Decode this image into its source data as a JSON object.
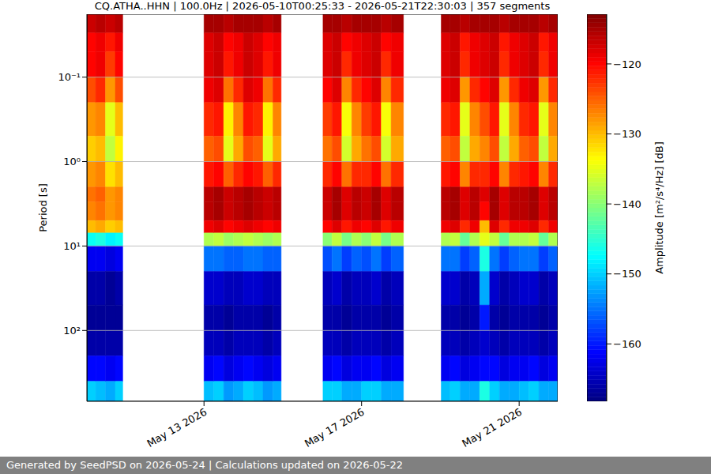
{
  "chart_data": {
    "type": "heatmap",
    "title": "CQ.ATHA..HHN | 100.0Hz | 2026-05-10T00:25:33 - 2026-05-21T22:30:03 | 357 segments",
    "y_label": "Period [s]",
    "footer": "Generated by SeedPSD on 2026-05-24 | Calculations updated on 2026-05-22",
    "log": "y",
    "grid": true,
    "xlim": [
      "2026-05-10T00:40",
      "2026-05-21T23:30"
    ],
    "xticks": [
      {
        "value": "2026-05-13T00:00",
        "label": "May 13 2026"
      },
      {
        "value": "2026-05-17T00:00",
        "label": "May 17 2026"
      },
      {
        "value": "2026-05-21T00:00",
        "label": "May 21 2026"
      }
    ],
    "ylim": [
      0.018,
      690
    ],
    "yticks": [
      {
        "value": 0.1,
        "label": "10⁻¹"
      },
      {
        "value": 1,
        "label": "10⁰"
      },
      {
        "value": 10,
        "label": "10¹"
      },
      {
        "value": 100,
        "label": "10²"
      }
    ],
    "period_edges": [
      0.018,
      0.03,
      0.05,
      0.1,
      0.2,
      0.5,
      1,
      2,
      3,
      5,
      7,
      10,
      20,
      50,
      100,
      200,
      400,
      690
    ],
    "segments": [
      {
        "x": [
          "2026-05-10T00:40",
          "2026-05-10T06:00",
          "2026-05-10T12:00",
          "2026-05-10T18:00",
          "2026-05-10T22:30"
        ],
        "values": [
          [
            -117,
            -120,
            -120,
            -124,
            -128,
            -131,
            -128,
            -126,
            -127,
            -130,
            -147,
            -162,
            -166,
            -167,
            -166,
            -161,
            -150
          ],
          [
            -116,
            -119,
            -119,
            -122,
            -127,
            -130,
            -127,
            -125,
            -126,
            -129,
            -146,
            -162,
            -166,
            -167,
            -166,
            -161,
            -151
          ],
          [
            -117,
            -121,
            -123,
            -128,
            -135,
            -137,
            -132,
            -128,
            -128,
            -131,
            -148,
            -163,
            -167,
            -167,
            -166,
            -162,
            -152
          ],
          [
            -116,
            -119,
            -120,
            -124,
            -130,
            -133,
            -130,
            -127,
            -127,
            -130,
            -147,
            -162,
            -166,
            -167,
            -166,
            -161,
            -150
          ]
        ]
      },
      {
        "x": [
          "2026-05-13T00:00",
          "2026-05-13T06:00",
          "2026-05-13T12:00",
          "2026-05-13T18:00",
          "2026-05-14T00:00",
          "2026-05-14T06:00",
          "2026-05-14T12:00",
          "2026-05-14T18:00",
          "2026-05-14T23:00"
        ],
        "values": [
          [
            -115,
            -118,
            -118,
            -119,
            -122,
            -125,
            -121,
            -116,
            -116,
            -119,
            -138,
            -155,
            -164,
            -166,
            -165,
            -162,
            -151
          ],
          [
            -115,
            -117,
            -117,
            -118,
            -121,
            -124,
            -120,
            -115,
            -115,
            -118,
            -137,
            -155,
            -164,
            -166,
            -165,
            -161,
            -150
          ],
          [
            -116,
            -120,
            -121,
            -126,
            -133,
            -135,
            -125,
            -117,
            -117,
            -120,
            -139,
            -156,
            -165,
            -167,
            -166,
            -163,
            -153
          ],
          [
            -115,
            -119,
            -119,
            -122,
            -127,
            -129,
            -122,
            -116,
            -116,
            -119,
            -138,
            -156,
            -165,
            -166,
            -165,
            -162,
            -152
          ],
          [
            -115,
            -117,
            -117,
            -118,
            -121,
            -124,
            -120,
            -115,
            -115,
            -118,
            -137,
            -155,
            -164,
            -166,
            -165,
            -161,
            -150
          ],
          [
            -115,
            -118,
            -118,
            -119,
            -122,
            -125,
            -121,
            -116,
            -116,
            -119,
            -138,
            -155,
            -164,
            -166,
            -165,
            -162,
            -151
          ],
          [
            -116,
            -120,
            -121,
            -126,
            -133,
            -135,
            -125,
            -117,
            -117,
            -120,
            -139,
            -156,
            -165,
            -167,
            -166,
            -163,
            -153
          ],
          [
            -115,
            -119,
            -119,
            -122,
            -127,
            -129,
            -122,
            -116,
            -116,
            -119,
            -138,
            -156,
            -165,
            -166,
            -165,
            -162,
            -152
          ]
        ]
      },
      {
        "x": [
          "2026-05-16T00:30",
          "2026-05-16T06:00",
          "2026-05-16T12:00",
          "2026-05-16T18:00",
          "2026-05-17T00:00",
          "2026-05-17T06:00",
          "2026-05-17T12:00",
          "2026-05-17T18:00",
          "2026-05-18T01:30"
        ],
        "values": [
          [
            -115,
            -118,
            -118,
            -120,
            -123,
            -126,
            -122,
            -117,
            -117,
            -120,
            -140,
            -157,
            -165,
            -166,
            -165,
            -162,
            -150
          ],
          [
            -115,
            -117,
            -117,
            -118,
            -121,
            -124,
            -120,
            -115,
            -115,
            -118,
            -137,
            -155,
            -164,
            -166,
            -165,
            -161,
            -150
          ],
          [
            -116,
            -120,
            -122,
            -127,
            -134,
            -136,
            -126,
            -118,
            -118,
            -121,
            -141,
            -158,
            -166,
            -167,
            -166,
            -163,
            -152
          ],
          [
            -115,
            -119,
            -119,
            -122,
            -127,
            -129,
            -122,
            -116,
            -116,
            -119,
            -138,
            -156,
            -165,
            -166,
            -165,
            -162,
            -152
          ],
          [
            -115,
            -118,
            -118,
            -120,
            -123,
            -126,
            -122,
            -117,
            -117,
            -120,
            -140,
            -157,
            -165,
            -166,
            -165,
            -162,
            -150
          ],
          [
            -115,
            -117,
            -117,
            -118,
            -121,
            -124,
            -120,
            -115,
            -115,
            -118,
            -137,
            -155,
            -164,
            -166,
            -165,
            -161,
            -150
          ],
          [
            -116,
            -120,
            -122,
            -127,
            -134,
            -136,
            -126,
            -118,
            -118,
            -121,
            -141,
            -158,
            -166,
            -167,
            -166,
            -163,
            -152
          ],
          [
            -115,
            -119,
            -119,
            -122,
            -127,
            -129,
            -122,
            -116,
            -116,
            -119,
            -138,
            -156,
            -165,
            -166,
            -165,
            -162,
            -152
          ]
        ]
      },
      {
        "x": [
          "2026-05-19T00:30",
          "2026-05-19T06:00",
          "2026-05-19T12:00",
          "2026-05-19T18:00",
          "2026-05-20T00:00",
          "2026-05-20T06:00",
          "2026-05-20T12:00",
          "2026-05-20T18:00",
          "2026-05-21T00:00",
          "2026-05-21T06:00",
          "2026-05-21T12:00",
          "2026-05-21T18:00",
          "2026-05-21T23:30"
        ],
        "values": [
          [
            -115,
            -118,
            -118,
            -119,
            -122,
            -125,
            -121,
            -116,
            -116,
            -119,
            -138,
            -155,
            -164,
            -166,
            -165,
            -162,
            -151
          ],
          [
            -115,
            -117,
            -117,
            -118,
            -121,
            -124,
            -120,
            -115,
            -115,
            -118,
            -137,
            -155,
            -164,
            -166,
            -165,
            -161,
            -150
          ],
          [
            -116,
            -121,
            -122,
            -128,
            -135,
            -137,
            -127,
            -118,
            -118,
            -122,
            -142,
            -158,
            -166,
            -167,
            -166,
            -163,
            -152
          ],
          [
            -115,
            -119,
            -119,
            -122,
            -127,
            -129,
            -122,
            -116,
            -116,
            -119,
            -138,
            -156,
            -165,
            -166,
            -165,
            -162,
            -152
          ],
          [
            -115,
            -118,
            -118,
            -120,
            -124,
            -127,
            -122,
            -118,
            -120,
            -130,
            -135,
            -146,
            -152,
            -160,
            -164,
            -161,
            -146
          ],
          [
            -115,
            -117,
            -117,
            -118,
            -121,
            -124,
            -120,
            -115,
            -115,
            -118,
            -137,
            -155,
            -164,
            -166,
            -165,
            -161,
            -150
          ],
          [
            -116,
            -121,
            -122,
            -128,
            -135,
            -137,
            -127,
            -118,
            -118,
            -122,
            -142,
            -158,
            -166,
            -167,
            -166,
            -163,
            -152
          ],
          [
            -115,
            -119,
            -119,
            -122,
            -127,
            -129,
            -122,
            -116,
            -116,
            -119,
            -138,
            -156,
            -165,
            -166,
            -165,
            -162,
            -152
          ],
          [
            -115,
            -118,
            -118,
            -119,
            -122,
            -125,
            -121,
            -116,
            -116,
            -119,
            -138,
            -155,
            -164,
            -166,
            -165,
            -162,
            -151
          ],
          [
            -115,
            -117,
            -117,
            -118,
            -121,
            -124,
            -120,
            -115,
            -115,
            -118,
            -137,
            -155,
            -164,
            -166,
            -165,
            -161,
            -150
          ],
          [
            -116,
            -121,
            -122,
            -128,
            -135,
            -137,
            -127,
            -118,
            -118,
            -122,
            -142,
            -158,
            -166,
            -167,
            -166,
            -163,
            -152
          ],
          [
            -115,
            -119,
            -119,
            -122,
            -127,
            -129,
            -122,
            -116,
            -116,
            -119,
            -138,
            -156,
            -165,
            -166,
            -165,
            -162,
            -152
          ]
        ]
      }
    ],
    "colorbar": {
      "label": "Amplitude [m²/s⁴/Hz] [dB]",
      "lim": [
        -168.2,
        -112.9
      ],
      "ticks": [
        {
          "value": -120,
          "label": "−120"
        },
        {
          "value": -130,
          "label": "−130"
        },
        {
          "value": -140,
          "label": "−140"
        },
        {
          "value": -150,
          "label": "−150"
        },
        {
          "value": -160,
          "label": "−160"
        }
      ]
    }
  }
}
